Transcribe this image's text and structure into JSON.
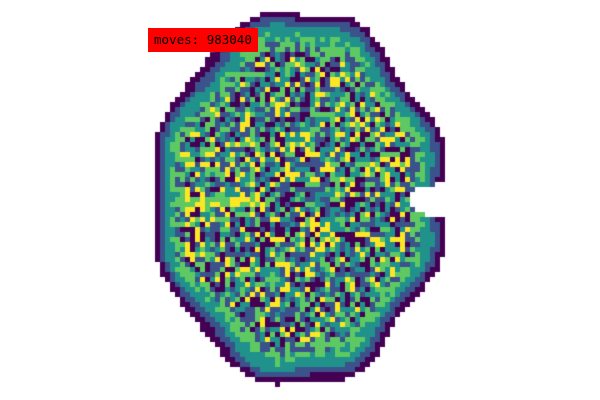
{
  "overlay": {
    "moves_prefix": "moves:",
    "moves_value": "983040"
  },
  "colors": {
    "background": "#ffffff",
    "label_background": "#ff0000",
    "label_text": "#000000",
    "palette": [
      "#440154",
      "#3b528b",
      "#21918c",
      "#5ec962",
      "#fde725"
    ]
  },
  "visual": {
    "description_colormap": "viridis"
  }
}
